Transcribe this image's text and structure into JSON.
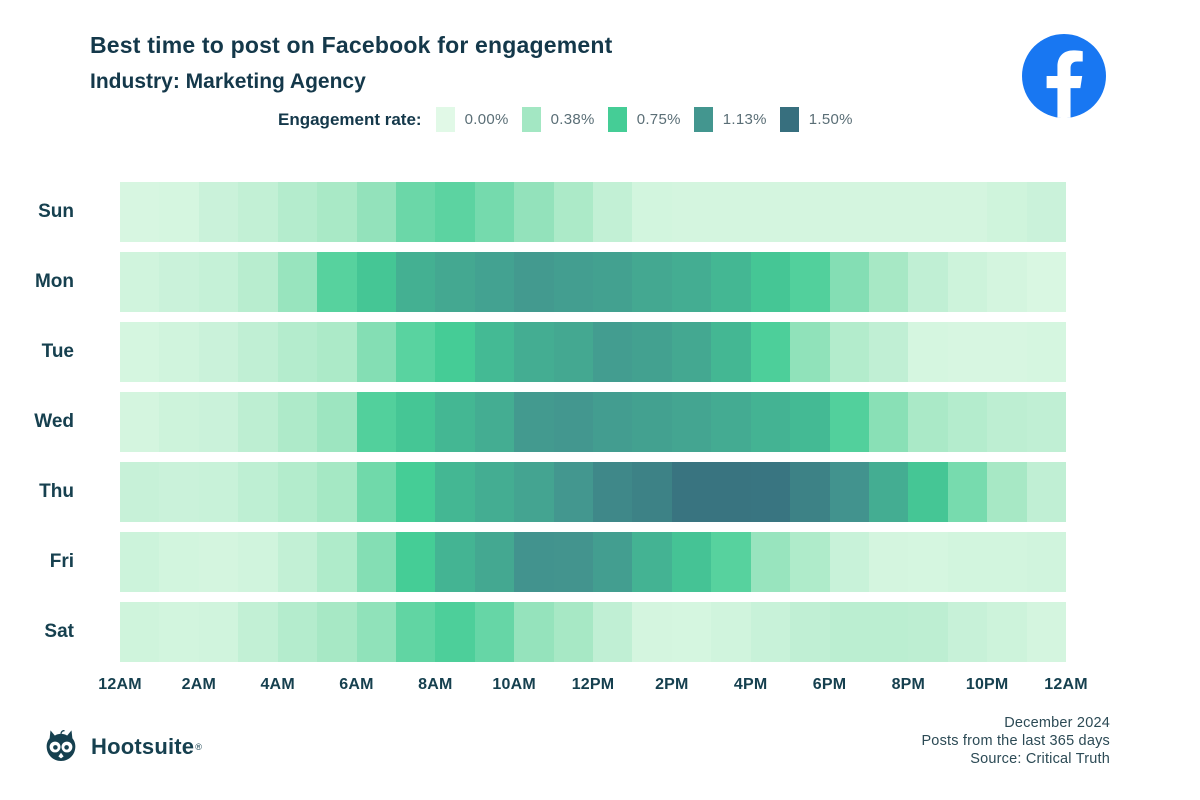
{
  "header": {
    "title": "Best time to post on Facebook for engagement",
    "subtitle": "Industry: Marketing Agency",
    "platform_icon": "facebook-icon"
  },
  "legend": {
    "label": "Engagement rate:",
    "position": "top",
    "stops": [
      {
        "value": "0.00%",
        "color": "#e1f9e7"
      },
      {
        "value": "0.38%",
        "color": "#a3e7c3"
      },
      {
        "value": "0.75%",
        "color": "#45cd96"
      },
      {
        "value": "1.13%",
        "color": "#43968f"
      },
      {
        "value": "1.50%",
        "color": "#376f7e"
      }
    ]
  },
  "chart_data": {
    "type": "heatmap",
    "title": "Best time to post on Facebook for engagement",
    "subtitle": "Industry: Marketing Agency",
    "unit": "engagement rate %",
    "value_range": [
      0,
      1.5
    ],
    "grid": false,
    "legend_position": "top",
    "rows": [
      "Sun",
      "Mon",
      "Tue",
      "Wed",
      "Thu",
      "Fri",
      "Sat"
    ],
    "hours": [
      "12AM",
      "1AM",
      "2AM",
      "3AM",
      "4AM",
      "5AM",
      "6AM",
      "7AM",
      "8AM",
      "9AM",
      "10AM",
      "11AM",
      "12PM",
      "1PM",
      "2PM",
      "3PM",
      "4PM",
      "5PM",
      "6PM",
      "7PM",
      "8PM",
      "9PM",
      "10PM",
      "11PM"
    ],
    "x_tick_labels": [
      "12AM",
      "2AM",
      "4AM",
      "6AM",
      "8AM",
      "10AM",
      "12PM",
      "2PM",
      "4PM",
      "6PM",
      "8PM",
      "10PM",
      "12AM"
    ],
    "values": [
      [
        0.06,
        0.07,
        0.14,
        0.19,
        0.27,
        0.34,
        0.44,
        0.6,
        0.66,
        0.56,
        0.44,
        0.32,
        0.19,
        0.09,
        0.08,
        0.08,
        0.08,
        0.08,
        0.08,
        0.08,
        0.08,
        0.08,
        0.11,
        0.14
      ],
      [
        0.1,
        0.14,
        0.17,
        0.25,
        0.42,
        0.68,
        0.8,
        0.95,
        1.0,
        1.04,
        1.1,
        1.07,
        1.05,
        1.0,
        0.97,
        0.9,
        0.8,
        0.7,
        0.5,
        0.35,
        0.2,
        0.12,
        0.08,
        0.05
      ],
      [
        0.07,
        0.1,
        0.14,
        0.2,
        0.27,
        0.32,
        0.5,
        0.67,
        0.76,
        0.88,
        0.97,
        1.0,
        1.08,
        1.05,
        1.0,
        0.9,
        0.72,
        0.45,
        0.28,
        0.2,
        0.07,
        0.06,
        0.06,
        0.07
      ],
      [
        0.08,
        0.12,
        0.14,
        0.22,
        0.31,
        0.4,
        0.7,
        0.8,
        0.9,
        0.97,
        1.1,
        1.12,
        1.08,
        1.05,
        1.02,
        0.98,
        0.93,
        0.88,
        0.7,
        0.48,
        0.33,
        0.27,
        0.22,
        0.2
      ],
      [
        0.16,
        0.14,
        0.15,
        0.21,
        0.28,
        0.36,
        0.58,
        0.75,
        0.9,
        0.97,
        1.03,
        1.12,
        1.26,
        1.32,
        1.45,
        1.45,
        1.44,
        1.32,
        1.15,
        0.97,
        0.8,
        0.55,
        0.35,
        0.2
      ],
      [
        0.13,
        0.09,
        0.08,
        0.1,
        0.19,
        0.3,
        0.5,
        0.75,
        0.92,
        1.0,
        1.15,
        1.14,
        1.07,
        0.93,
        0.82,
        0.68,
        0.42,
        0.3,
        0.15,
        0.08,
        0.07,
        0.09,
        0.09,
        0.1
      ],
      [
        0.11,
        0.09,
        0.1,
        0.19,
        0.27,
        0.35,
        0.45,
        0.64,
        0.72,
        0.62,
        0.43,
        0.35,
        0.2,
        0.08,
        0.07,
        0.1,
        0.15,
        0.2,
        0.23,
        0.23,
        0.22,
        0.16,
        0.12,
        0.08
      ]
    ],
    "color_scale": {
      "domain": [
        0,
        0.375,
        0.75,
        1.125,
        1.5
      ],
      "range": [
        "#e1f9e7",
        "#a3e7c3",
        "#45cd96",
        "#43968f",
        "#376f7e"
      ]
    }
  },
  "footer": {
    "brand": "Hootsuite",
    "registered": "®",
    "brand_icon": "owl-icon",
    "meta_lines": [
      "December 2024",
      "Posts from the last 365 days",
      "Source: Critical Truth"
    ]
  },
  "colors": {
    "facebook_blue": "#1877f2",
    "brand_dark": "#16404f",
    "title_dark": "#14384a"
  }
}
